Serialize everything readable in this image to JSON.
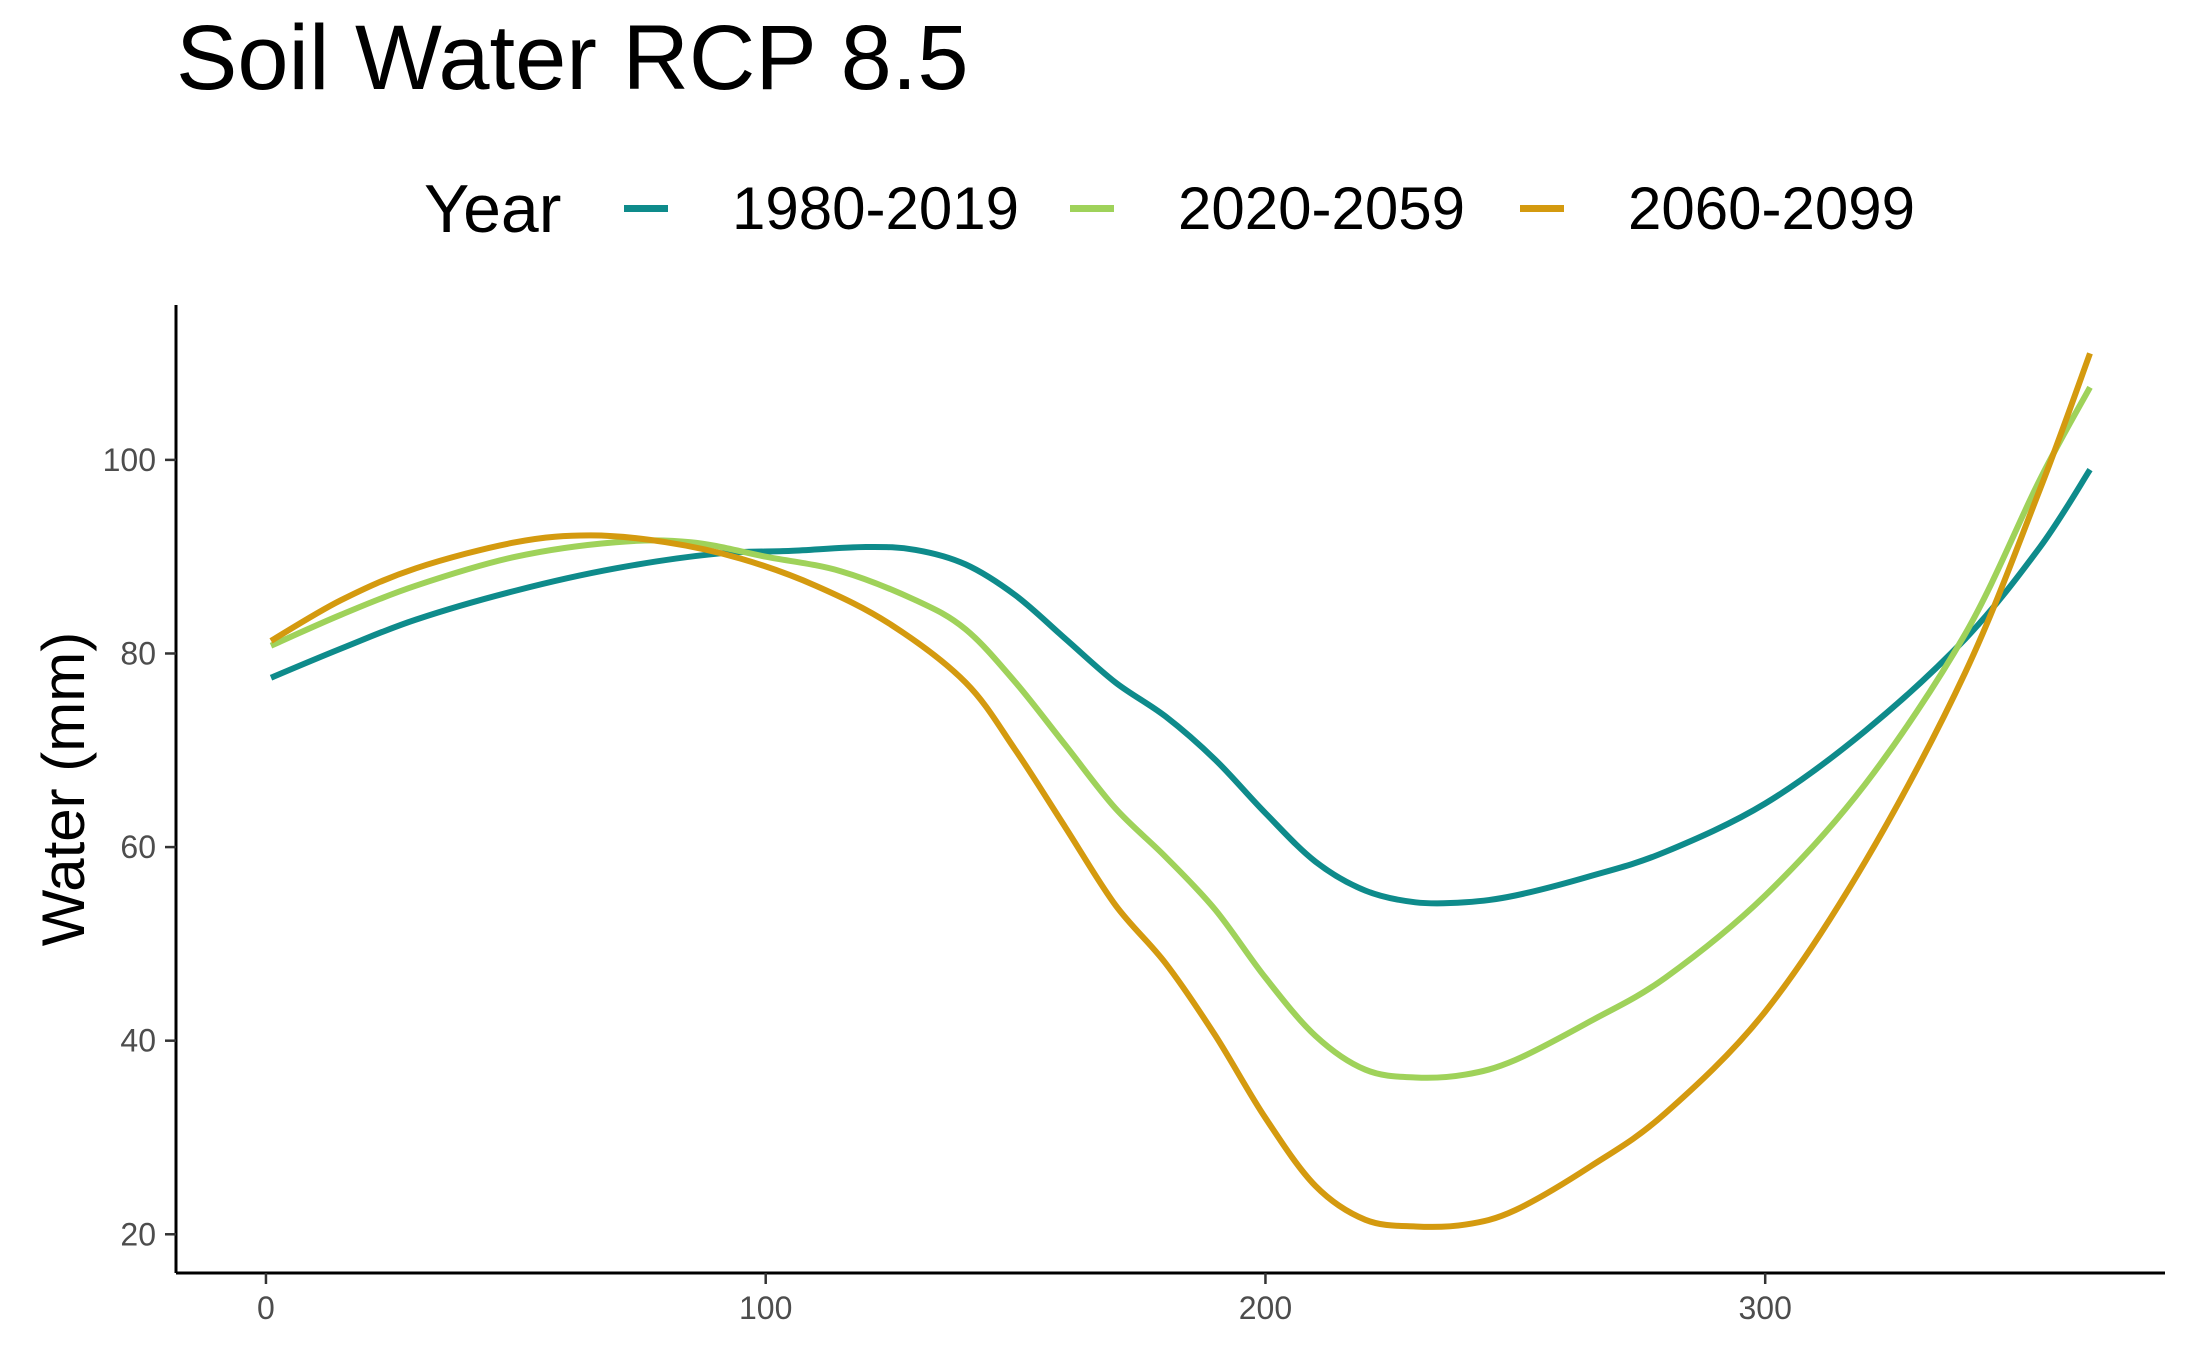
{
  "title": "Soil Water RCP 8.5",
  "legend": {
    "title": "Year",
    "items": [
      {
        "label": "1980-2019",
        "color": "#0e8b8b"
      },
      {
        "label": "2020-2059",
        "color": "#9fd25a"
      },
      {
        "label": "2060-2099",
        "color": "#d49a0f"
      }
    ]
  },
  "chart_data": {
    "type": "line",
    "title": "Soil Water RCP 8.5",
    "xlabel": "",
    "ylabel": "Water (mm)",
    "xlim": [
      -18,
      380
    ],
    "ylim": [
      16,
      116
    ],
    "x_ticks": [
      0,
      100,
      200,
      300
    ],
    "y_ticks": [
      20,
      40,
      60,
      80,
      100
    ],
    "grid": false,
    "legend_position": "top",
    "series": [
      {
        "name": "1980-2019",
        "color": "#0e8b8b",
        "x": [
          1,
          15,
          30,
          50,
          70,
          90,
          105,
          120,
          130,
          140,
          150,
          160,
          170,
          180,
          190,
          200,
          210,
          220,
          230,
          240,
          250,
          265,
          280,
          300,
          320,
          340,
          355,
          365
        ],
        "y": [
          77.5,
          80.5,
          83.5,
          86.5,
          88.8,
          90.3,
          90.6,
          91.0,
          90.7,
          89.2,
          86.0,
          81.5,
          77.0,
          73.5,
          69.0,
          63.5,
          58.5,
          55.5,
          54.3,
          54.3,
          55.0,
          57.0,
          59.5,
          64.5,
          72.0,
          81.5,
          91.0,
          99.0
        ]
      },
      {
        "name": "2020-2059",
        "color": "#9fd25a",
        "x": [
          1,
          15,
          30,
          50,
          70,
          85,
          100,
          115,
          130,
          140,
          150,
          160,
          170,
          180,
          190,
          200,
          210,
          220,
          230,
          240,
          250,
          265,
          280,
          300,
          320,
          340,
          355,
          365
        ],
        "y": [
          80.8,
          84.0,
          87.0,
          90.0,
          91.5,
          91.5,
          90.0,
          88.5,
          85.5,
          82.5,
          77.0,
          70.5,
          64.0,
          59.0,
          53.5,
          46.5,
          40.5,
          37.0,
          36.2,
          36.5,
          38.0,
          42.0,
          46.5,
          55.0,
          66.5,
          82.0,
          98.0,
          107.5
        ]
      },
      {
        "name": "2060-2099",
        "color": "#d49a0f",
        "x": [
          1,
          15,
          30,
          50,
          65,
          80,
          95,
          110,
          125,
          140,
          150,
          160,
          170,
          180,
          190,
          200,
          210,
          220,
          230,
          240,
          250,
          265,
          280,
          300,
          320,
          340,
          355,
          365
        ],
        "y": [
          81.3,
          85.5,
          88.8,
          91.5,
          92.2,
          91.5,
          89.8,
          87.0,
          83.0,
          77.0,
          70.0,
          62.0,
          54.0,
          48.0,
          40.5,
          32.0,
          25.0,
          21.5,
          20.8,
          21.0,
          22.5,
          27.0,
          32.5,
          43.0,
          58.5,
          78.0,
          97.0,
          111.0
        ]
      }
    ]
  }
}
